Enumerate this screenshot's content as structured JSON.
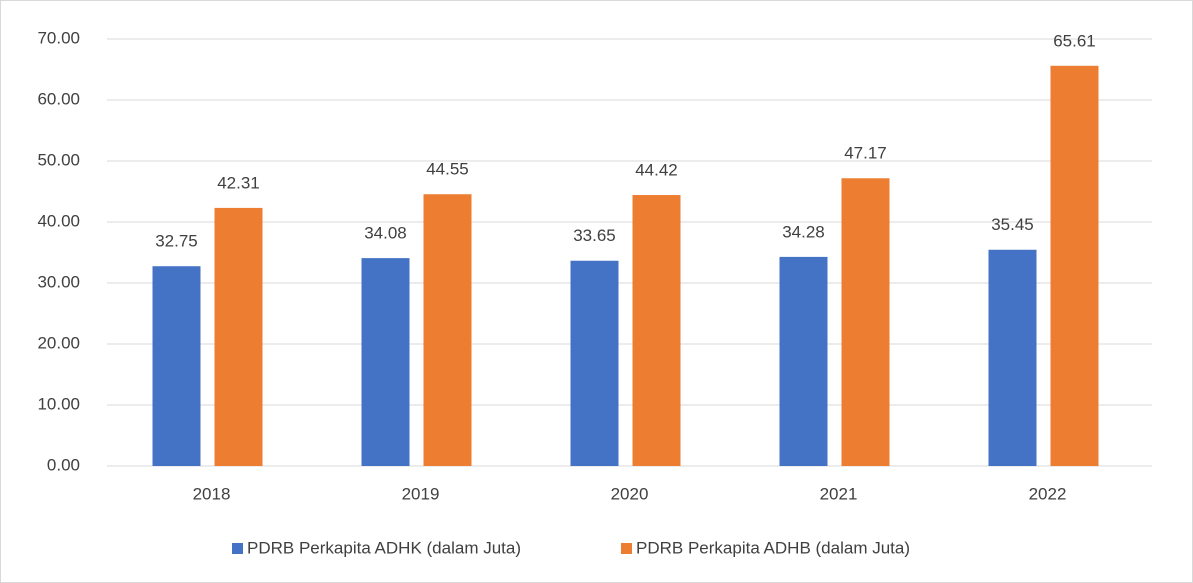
{
  "chart_data": {
    "type": "bar",
    "categories": [
      "2018",
      "2019",
      "2020",
      "2021",
      "2022"
    ],
    "series": [
      {
        "name": "PDRB Perkapita ADHK (dalam Juta)",
        "color": "#4472c4",
        "values": [
          32.75,
          34.08,
          33.65,
          34.28,
          35.45
        ]
      },
      {
        "name": "PDRB Perkapita ADHB (dalam Juta)",
        "color": "#ed7d31",
        "values": [
          42.31,
          44.55,
          44.42,
          47.17,
          65.61
        ]
      }
    ],
    "ylim": [
      0,
      70
    ],
    "yticks": [
      {
        "value": 0,
        "label": "0.00"
      },
      {
        "value": 10,
        "label": "10.00"
      },
      {
        "value": 20,
        "label": "20.00"
      },
      {
        "value": 30,
        "label": "30.00"
      },
      {
        "value": 40,
        "label": "40.00"
      },
      {
        "value": 50,
        "label": "50.00"
      },
      {
        "value": 60,
        "label": "60.00"
      },
      {
        "value": 70,
        "label": "70.00"
      }
    ],
    "grid": true,
    "legend": "bottom"
  }
}
